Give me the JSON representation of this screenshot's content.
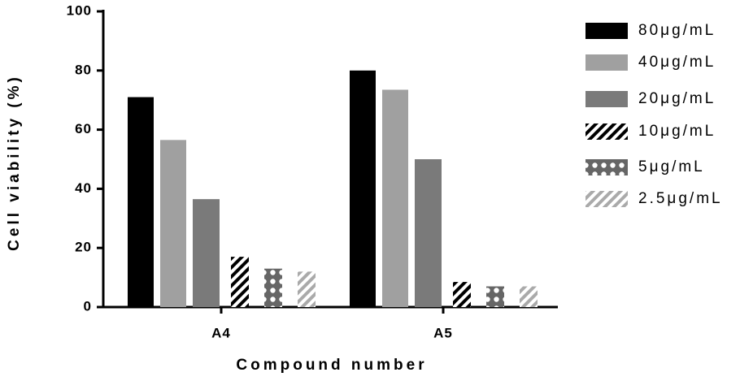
{
  "chart_data": {
    "type": "bar",
    "x_label": "Compound number",
    "y_label": "Cell viability (%)",
    "categories": [
      "A4",
      "A5"
    ],
    "series": [
      {
        "name": "80μg/mL",
        "color": "#000000",
        "pattern": "solid",
        "values": [
          71,
          80
        ]
      },
      {
        "name": "40μg/mL",
        "color": "#a0a0a0",
        "pattern": "solid",
        "values": [
          56.5,
          73.5
        ]
      },
      {
        "name": "20μg/mL",
        "color": "#7a7a7a",
        "pattern": "solid",
        "values": [
          36.5,
          50
        ]
      },
      {
        "name": "10μg/mL",
        "color": "#000000",
        "pattern": "hatch",
        "values": [
          17,
          8.5
        ]
      },
      {
        "name": "5μg/mL",
        "color": "#666666",
        "pattern": "cross",
        "values": [
          13,
          7
        ]
      },
      {
        "name": "2.5μg/mL",
        "color": "#aaaaaa",
        "pattern": "hatch",
        "values": [
          12,
          7
        ]
      }
    ],
    "ylim": [
      0,
      100
    ],
    "yticks": [
      0,
      20,
      40,
      60,
      80,
      100
    ],
    "grid": false,
    "legend": "right"
  }
}
